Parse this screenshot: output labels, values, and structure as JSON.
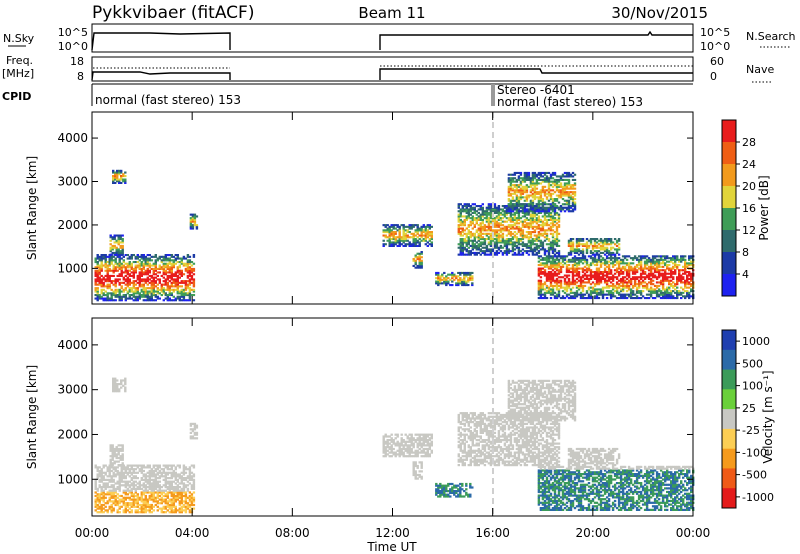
{
  "header": {
    "station": "Pykkvibaer (fitACF)",
    "beam": "Beam 11",
    "date": "30/Nov/2015"
  },
  "panels": {
    "nsky_label": "N.Sky",
    "nsky_ticks": [
      "10^5",
      "10^0"
    ],
    "nsearch_label": "N.Search",
    "nsearch_ticks": [
      "10^5",
      "10^0"
    ],
    "freq_label_1": "Freq.",
    "freq_label_2": "[MHz]",
    "freq_ticks": [
      "18",
      "8"
    ],
    "nave_label": "Nave",
    "nave_ticks": [
      "60",
      "0"
    ],
    "cpid_label": "CPID",
    "cpid_segments": [
      "normal (fast stereo) 153",
      "Stereo -6401",
      "normal (fast stereo) 153"
    ]
  },
  "colors": {
    "power": [
      "#1e22f0",
      "#1c3aa6",
      "#2f6b6c",
      "#3f9d57",
      "#e1d43a",
      "#f29a1c",
      "#ef5e14",
      "#e81c1c"
    ],
    "velocity": [
      "#e41b1b",
      "#ef5a17",
      "#f59a1c",
      "#fcce54",
      "#c8c8c3",
      "#6ad03a",
      "#3b9b59",
      "#2b6aa8",
      "#1f3fb0"
    ]
  },
  "chart_data": [
    {
      "type": "heatmap",
      "name": "power",
      "ylabel": "Slant Range [km]",
      "y_ticks": [
        1000,
        2000,
        3000,
        4000
      ],
      "ylim": [
        180,
        4600
      ],
      "x_ticks": [
        "00:00",
        "04:00",
        "08:00",
        "12:00",
        "16:00",
        "20:00",
        "00:00"
      ],
      "xlim_hours": [
        0,
        24
      ],
      "colorbar_label": "Power [dB]",
      "colorbar_ticks": [
        "4",
        "8",
        "12",
        "16",
        "20",
        "24",
        "28"
      ]
    },
    {
      "type": "heatmap",
      "name": "velocity",
      "ylabel": "Slant Range [km]",
      "y_ticks": [
        1000,
        2000,
        3000,
        4000
      ],
      "ylim": [
        180,
        4600
      ],
      "x_ticks": [
        "00:00",
        "04:00",
        "08:00",
        "12:00",
        "16:00",
        "20:00",
        "00:00"
      ],
      "xlim_hours": [
        0,
        24
      ],
      "xlabel": "Time UT",
      "colorbar_label": "Velocity [m s⁻¹]",
      "colorbar_ticks": [
        "1000",
        "500",
        "100",
        "25",
        "-25",
        "-100",
        "-500",
        "-1000"
      ]
    }
  ]
}
